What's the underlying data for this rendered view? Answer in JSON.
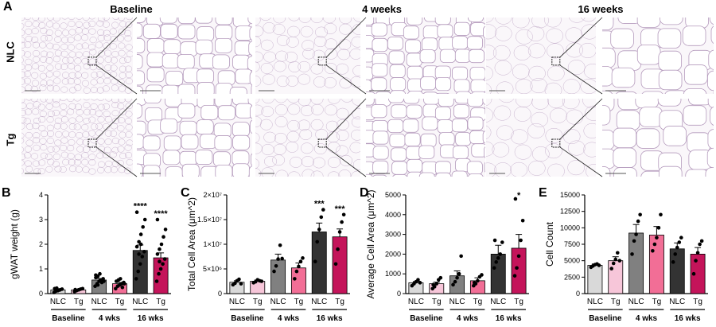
{
  "panel_a": {
    "letter": "A",
    "columns": [
      "Baseline",
      "4 weeks",
      "16 weeks"
    ],
    "rows": [
      "NLC",
      "Tg"
    ]
  },
  "colors": {
    "nlc_baseline": "#d9d9d9",
    "tg_baseline": "#f7c6d9",
    "nlc_4wk": "#808080",
    "tg_4wk": "#f26e96",
    "nlc_16wk": "#333333",
    "tg_16wk": "#c4145a",
    "tissue_bg": "#faf7fa",
    "tissue_line": "#b59bbd"
  },
  "chart_data": [
    {
      "letter": "B",
      "type": "bar",
      "ylabel": "gWAT weight (g)",
      "ylim": [
        0,
        4
      ],
      "yticks": [
        "0",
        "1",
        "2",
        "3",
        "4"
      ],
      "ytick_values": [
        0,
        1,
        2,
        3,
        4
      ],
      "categories": [
        "NLC",
        "Tg",
        "NLC",
        "Tg",
        "NLC",
        "Tg"
      ],
      "groups": [
        "Baseline",
        "4 wks",
        "16 wks"
      ],
      "values": [
        0.15,
        0.15,
        0.55,
        0.4,
        1.75,
        1.45
      ],
      "errors": [
        0.03,
        0.02,
        0.06,
        0.05,
        0.22,
        0.2
      ],
      "significance": [
        "",
        "",
        "",
        "",
        "****",
        "****"
      ],
      "points": [
        [
          0.05,
          0.1,
          0.12,
          0.15,
          0.18,
          0.2,
          0.22,
          0.14
        ],
        [
          0.08,
          0.12,
          0.15,
          0.18,
          0.2,
          0.16
        ],
        [
          0.3,
          0.4,
          0.5,
          0.55,
          0.6,
          0.65,
          0.7,
          0.8,
          0.45,
          0.5,
          0.75,
          0.35
        ],
        [
          0.2,
          0.3,
          0.35,
          0.4,
          0.45,
          0.5,
          0.55,
          0.6,
          0.25,
          0.4
        ],
        [
          0.6,
          0.9,
          1.2,
          1.5,
          1.7,
          1.9,
          2.1,
          2.4,
          2.7,
          3.0,
          3.3,
          1.6,
          2.0
        ],
        [
          0.5,
          0.8,
          1.0,
          1.2,
          1.4,
          1.6,
          1.8,
          2.0,
          2.3,
          2.6,
          3.0,
          1.3
        ]
      ]
    },
    {
      "letter": "C",
      "type": "bar",
      "ylabel": "Total Cell Area (μm^2)",
      "ylim": [
        0,
        20000000
      ],
      "yticks": [
        "0",
        "5×10⁶",
        "1×10⁷",
        "1.5×10⁷",
        "2×10⁷"
      ],
      "ytick_values": [
        0,
        5000000,
        10000000,
        15000000,
        20000000
      ],
      "categories": [
        "NLC",
        "Tg",
        "NLC",
        "Tg",
        "NLC",
        "Tg"
      ],
      "groups": [
        "Baseline",
        "4 wks",
        "16 wks"
      ],
      "values": [
        2300000,
        2500000,
        6800000,
        5200000,
        12500000,
        11500000
      ],
      "errors": [
        300000,
        250000,
        1200000,
        1000000,
        1800000,
        1600000
      ],
      "significance": [
        "",
        "",
        "",
        "",
        "***",
        "***"
      ],
      "points": [
        [
          1800000,
          2100000,
          2600000,
          2900000,
          2000000
        ],
        [
          2200000,
          2400000,
          2800000,
          2600000,
          2500000
        ],
        [
          4500000,
          5600000,
          7000000,
          9800000,
          7100000
        ],
        [
          3000000,
          4500000,
          5500000,
          6500000,
          7200000
        ],
        [
          6500000,
          10500000,
          13000000,
          15500000,
          17000000
        ],
        [
          6000000,
          9000000,
          12500000,
          14500000,
          16000000
        ]
      ]
    },
    {
      "letter": "D",
      "type": "bar",
      "ylabel": "Average Cell Area (μm^2)",
      "ylim": [
        0,
        5000
      ],
      "yticks": [
        "0",
        "1000",
        "2000",
        "3000",
        "4000",
        "5000"
      ],
      "ytick_values": [
        0,
        1000,
        2000,
        3000,
        4000,
        5000
      ],
      "categories": [
        "NLC",
        "Tg",
        "NLC",
        "Tg",
        "NLC",
        "Tg"
      ],
      "groups": [
        "Baseline",
        "4 wks",
        "16 wks"
      ],
      "values": [
        550,
        500,
        900,
        650,
        2000,
        2300
      ],
      "errors": [
        60,
        80,
        250,
        150,
        450,
        700
      ],
      "significance": [
        "",
        "",
        "",
        "",
        "",
        "*"
      ],
      "points": [
        [
          400,
          500,
          600,
          700,
          550
        ],
        [
          250,
          350,
          500,
          700,
          800,
          450
        ],
        [
          450,
          600,
          800,
          1000,
          1900
        ],
        [
          400,
          500,
          650,
          850,
          950,
          550
        ],
        [
          1300,
          1600,
          1800,
          2000,
          2600,
          2700
        ],
        [
          900,
          1300,
          1900,
          2700,
          3700,
          4800
        ]
      ]
    },
    {
      "letter": "E",
      "type": "bar",
      "ylabel": "Cell Count",
      "ylim": [
        0,
        15000
      ],
      "yticks": [
        "0",
        "2500",
        "5000",
        "7500",
        "10000",
        "12500",
        "15000"
      ],
      "ytick_values": [
        0,
        2500,
        5000,
        7500,
        10000,
        12500,
        15000
      ],
      "categories": [
        "NLC",
        "Tg",
        "NLC",
        "Tg",
        "NLC",
        "Tg"
      ],
      "groups": [
        "Baseline",
        "4 wks",
        "16 wks"
      ],
      "values": [
        4300,
        5000,
        9200,
        8900,
        6800,
        6000
      ],
      "errors": [
        200,
        600,
        1300,
        1300,
        900,
        1000
      ],
      "significance": [
        "",
        "",
        "",
        "",
        "",
        ""
      ],
      "points": [
        [
          4000,
          4200,
          4400,
          4500,
          4300
        ],
        [
          3800,
          4600,
          5200,
          6200,
          5000
        ],
        [
          6000,
          8000,
          9000,
          11000,
          12000
        ],
        [
          6500,
          7500,
          8500,
          10000,
          12000
        ],
        [
          4800,
          6000,
          7000,
          7800,
          8500
        ],
        [
          3000,
          5000,
          6200,
          7500,
          8000
        ]
      ]
    }
  ]
}
